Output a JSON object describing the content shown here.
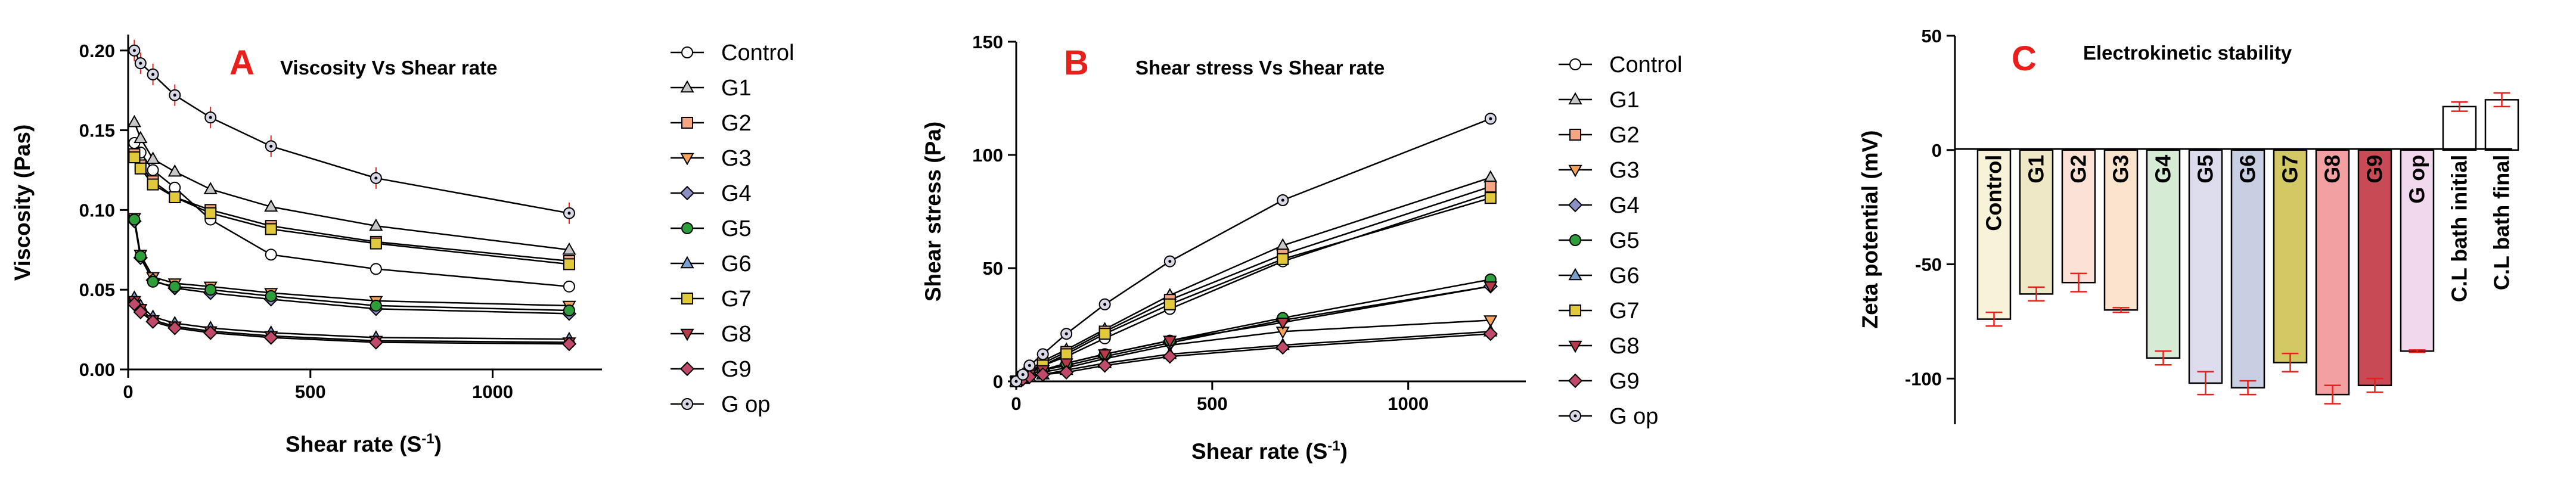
{
  "chart_data": [
    {
      "panel": "A",
      "type": "line",
      "title": "Viscosity Vs Shear rate",
      "xlabel": "Shear rate (S",
      "xlabel_sup": "-1",
      "xlabel_end": ")",
      "ylabel": "Viscosity (Pas)",
      "xlim": [
        0,
        1300
      ],
      "ylim": [
        0,
        0.21
      ],
      "xticks": [
        0,
        500,
        1000
      ],
      "xtick_labels": [
        "0",
        "500",
        "1000"
      ],
      "yticks": [
        0,
        0.05,
        0.1,
        0.15,
        0.2
      ],
      "ytick_labels": [
        "0.00",
        "0.05",
        "0.10",
        "0.15",
        "0.20"
      ],
      "x": [
        17,
        34,
        68,
        128,
        226,
        392,
        680,
        1210
      ],
      "series": [
        {
          "name": "Control",
          "marker": "circle",
          "color": "#ffffff",
          "values": [
            0.142,
            0.136,
            0.125,
            0.114,
            0.094,
            0.072,
            0.063,
            0.052
          ]
        },
        {
          "name": "G1",
          "marker": "triangle-up",
          "color": "#c8c8c8",
          "values": [
            0.155,
            0.145,
            0.132,
            0.124,
            0.113,
            0.102,
            0.09,
            0.075
          ]
        },
        {
          "name": "G2",
          "marker": "square",
          "color": "#f4a582",
          "values": [
            0.135,
            0.128,
            0.118,
            0.108,
            0.1,
            0.09,
            0.08,
            0.068
          ]
        },
        {
          "name": "G3",
          "marker": "triangle-down",
          "color": "#f6a35e",
          "values": [
            0.095,
            0.072,
            0.058,
            0.054,
            0.052,
            0.048,
            0.043,
            0.04
          ]
        },
        {
          "name": "G4",
          "marker": "diamond",
          "color": "#8a8fc4",
          "values": [
            0.093,
            0.07,
            0.056,
            0.051,
            0.048,
            0.044,
            0.038,
            0.035
          ]
        },
        {
          "name": "G5",
          "marker": "circle",
          "color": "#2e9e3a",
          "values": [
            0.094,
            0.071,
            0.055,
            0.052,
            0.05,
            0.046,
            0.04,
            0.037
          ]
        },
        {
          "name": "G6",
          "marker": "triangle-up",
          "color": "#7aa0d0",
          "values": [
            0.045,
            0.04,
            0.033,
            0.029,
            0.026,
            0.023,
            0.02,
            0.019
          ]
        },
        {
          "name": "G7",
          "marker": "square",
          "color": "#e2c83c",
          "values": [
            0.133,
            0.126,
            0.116,
            0.108,
            0.098,
            0.088,
            0.079,
            0.066
          ]
        },
        {
          "name": "G8",
          "marker": "triangle-down",
          "color": "#b83a4a",
          "values": [
            0.043,
            0.038,
            0.031,
            0.027,
            0.024,
            0.021,
            0.018,
            0.017
          ]
        },
        {
          "name": "G9",
          "marker": "diamond",
          "color": "#c04a6a",
          "values": [
            0.041,
            0.036,
            0.03,
            0.026,
            0.023,
            0.02,
            0.017,
            0.016
          ]
        },
        {
          "name": "G op",
          "marker": "circle-dot",
          "color": "#d8d8e6",
          "values": [
            0.2,
            0.192,
            0.185,
            0.172,
            0.158,
            0.14,
            0.12,
            0.098
          ]
        }
      ]
    },
    {
      "panel": "B",
      "type": "line",
      "title": "Shear stress Vs Shear rate",
      "xlabel": "Shear rate (S",
      "xlabel_sup": "-1",
      "xlabel_end": ")",
      "ylabel": "Shear stress (Pa)",
      "xlim": [
        0,
        1300
      ],
      "ylim": [
        0,
        150
      ],
      "xticks": [
        0,
        500,
        1000
      ],
      "xtick_labels": [
        "0",
        "500",
        "1000"
      ],
      "yticks": [
        0,
        50,
        100,
        150
      ],
      "ytick_labels": [
        "0",
        "50",
        "100",
        "150"
      ],
      "x": [
        0,
        17,
        34,
        68,
        128,
        226,
        392,
        680,
        1210
      ],
      "series": [
        {
          "name": "Control",
          "marker": "circle",
          "color": "#ffffff",
          "values": [
            0,
            2,
            4,
            7,
            11,
            19,
            32,
            53,
            83
          ]
        },
        {
          "name": "G1",
          "marker": "triangle-up",
          "color": "#c8c8c8",
          "values": [
            0,
            3,
            5,
            9,
            14,
            23,
            38,
            60,
            90
          ]
        },
        {
          "name": "G2",
          "marker": "square",
          "color": "#f4a582",
          "values": [
            0,
            2,
            4,
            8,
            13,
            22,
            36,
            56,
            86
          ]
        },
        {
          "name": "G3",
          "marker": "triangle-down",
          "color": "#f6a35e",
          "values": [
            0,
            1,
            2,
            4,
            6,
            10,
            16,
            22,
            27
          ]
        },
        {
          "name": "G4",
          "marker": "diamond",
          "color": "#8a8fc4",
          "values": [
            0,
            1,
            3,
            5,
            7,
            11,
            17,
            27,
            42
          ]
        },
        {
          "name": "G5",
          "marker": "circle",
          "color": "#2e9e3a",
          "values": [
            0,
            2,
            3,
            5,
            8,
            12,
            18,
            28,
            45
          ]
        },
        {
          "name": "G6",
          "marker": "triangle-up",
          "color": "#7aa0d0",
          "values": [
            0,
            1,
            2,
            3,
            5,
            8,
            12,
            16,
            22
          ]
        },
        {
          "name": "G7",
          "marker": "square",
          "color": "#e2c83c",
          "values": [
            0,
            2,
            4,
            7,
            12,
            21,
            34,
            54,
            81
          ]
        },
        {
          "name": "G8",
          "marker": "triangle-down",
          "color": "#b83a4a",
          "values": [
            0,
            1,
            3,
            5,
            8,
            12,
            18,
            26,
            42
          ]
        },
        {
          "name": "G9",
          "marker": "diamond",
          "color": "#c04a6a",
          "values": [
            0,
            1,
            2,
            3,
            4,
            7,
            11,
            15,
            21
          ]
        },
        {
          "name": "G op",
          "marker": "circle-dot",
          "color": "#d8d8e6",
          "values": [
            0,
            3,
            7,
            12,
            21,
            34,
            53,
            80,
            116
          ]
        }
      ]
    },
    {
      "panel": "C",
      "type": "bar",
      "title": "Electrokinetic stability",
      "xlabel": "",
      "ylabel": "Zeta potential (mV)",
      "ylim": [
        -120,
        50
      ],
      "yticks": [
        -100,
        -50,
        0,
        50
      ],
      "ytick_labels": [
        "-100",
        "-50",
        "0",
        "50"
      ],
      "categories": [
        "Control",
        "G1",
        "G2",
        "G3",
        "G4",
        "G5",
        "G6",
        "G7",
        "G8",
        "G9",
        "G op",
        "C.L bath initial",
        "C.L bath final"
      ],
      "values": [
        -74,
        -63,
        -58,
        -70,
        -91,
        -102,
        -104,
        -93,
        -107,
        -103,
        -88,
        19,
        22
      ],
      "errors": [
        3,
        3,
        4,
        1,
        3,
        5,
        3,
        4,
        4,
        3,
        0.5,
        2,
        3
      ],
      "colors": [
        "#f8f2d8",
        "#eee8c6",
        "#fbe0d6",
        "#fae3cc",
        "#d5ebd3",
        "#dcdcec",
        "#c8cfe3",
        "#d2c864",
        "#f2a0a2",
        "#c84a55",
        "#f2d8ec",
        "#ffffff",
        "#ffffff"
      ]
    }
  ]
}
